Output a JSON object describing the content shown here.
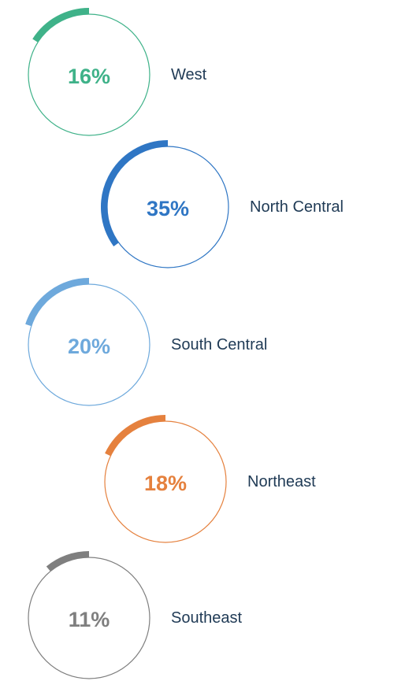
{
  "chart_data": {
    "type": "ring",
    "categories": [
      "West",
      "North Central",
      "South Central",
      "Northeast",
      "Southeast"
    ],
    "values": [
      16,
      35,
      20,
      18,
      11
    ],
    "value_labels": [
      "16%",
      "35%",
      "20%",
      "18%",
      "11%"
    ],
    "colors": [
      "#3fb289",
      "#2f76c4",
      "#6ea9dc",
      "#e5813e",
      "#7f7f7f"
    ]
  }
}
